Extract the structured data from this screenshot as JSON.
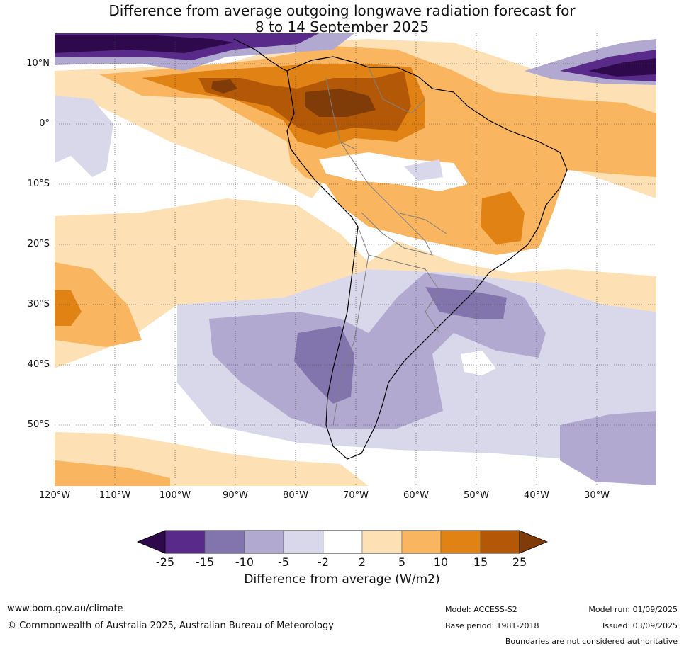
{
  "title": {
    "line1": "Difference from average outgoing longwave radiation forecast for",
    "line2": "8 to 14 September 2025"
  },
  "map": {
    "lat_labels": [
      "10°N",
      "0°",
      "10°S",
      "20°S",
      "30°S",
      "40°S",
      "50°S"
    ],
    "lon_labels": [
      "120°W",
      "110°W",
      "100°W",
      "90°W",
      "80°W",
      "70°W",
      "60°W",
      "50°W",
      "40°W",
      "30°W"
    ]
  },
  "colorbar": {
    "ticks": [
      "-25",
      "-15",
      "-10",
      "-5",
      "-2",
      "2",
      "5",
      "10",
      "15",
      "25"
    ],
    "colors": [
      "#2e0a4d",
      "#5a2a8a",
      "#8274ad",
      "#b1a9d0",
      "#d8d8ea",
      "#ffffff",
      "#fde0b4",
      "#f9b55f",
      "#e08214",
      "#b35806",
      "#7f3b08"
    ],
    "label": "Difference from average (W/m2)"
  },
  "footer": {
    "website": "www.bom.gov.au/climate",
    "copyright": "© Commonwealth of Australia 2025, Australian Bureau of Meteorology",
    "model": "Model: ACCESS-S2",
    "base_period": "Base period: 1981-2018",
    "model_run": "Model run: 01/09/2025",
    "issued": "Issued: 03/09/2025",
    "disclaimer": "Boundaries are not considered authoritative"
  }
}
